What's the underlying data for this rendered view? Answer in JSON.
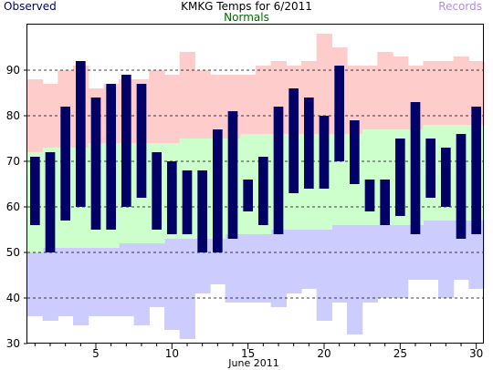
{
  "chart_data": {
    "type": "bar",
    "title": "KMKG Temps for 6/2011",
    "xlabel": "June 2011",
    "ylabel": "",
    "ylim": [
      30,
      100
    ],
    "xlim": [
      0.5,
      30.5
    ],
    "yticks": [
      30,
      40,
      50,
      60,
      70,
      80,
      90
    ],
    "xticks": [
      5,
      10,
      15,
      20,
      25,
      30
    ],
    "grid": "horizontal dashed",
    "legend": {
      "observed": "Observed",
      "normals": "Normals",
      "records": "Records"
    },
    "colors": {
      "observed": "#000066",
      "normals": "#ccffcc",
      "records_high": "#ffcccc",
      "records_low": "#ccccff",
      "normals_text": "#006600",
      "records_text": "#b38fd9"
    },
    "days": [
      1,
      2,
      3,
      4,
      5,
      6,
      7,
      8,
      9,
      10,
      11,
      12,
      13,
      14,
      15,
      16,
      17,
      18,
      19,
      20,
      21,
      22,
      23,
      24,
      25,
      26,
      27,
      28,
      29,
      30
    ],
    "observed_high": [
      71,
      72,
      82,
      92,
      84,
      87,
      89,
      87,
      72,
      70,
      68,
      68,
      77,
      81,
      66,
      71,
      82,
      86,
      84,
      80,
      91,
      79,
      66,
      66,
      75,
      83,
      75,
      73,
      76,
      82
    ],
    "observed_low": [
      56,
      50,
      57,
      60,
      55,
      55,
      60,
      62,
      55,
      54,
      54,
      50,
      50,
      53,
      59,
      56,
      54,
      63,
      64,
      64,
      70,
      65,
      59,
      56,
      58,
      54,
      62,
      60,
      53,
      54
    ],
    "normal_high": [
      72,
      73,
      73,
      73,
      74,
      74,
      74,
      74,
      74,
      74,
      75,
      75,
      75,
      75,
      76,
      76,
      76,
      76,
      76,
      76,
      76,
      76,
      77,
      77,
      77,
      77,
      78,
      78,
      78,
      78
    ],
    "normal_low": [
      50,
      51,
      51,
      51,
      51,
      51,
      52,
      52,
      52,
      53,
      53,
      53,
      53,
      54,
      54,
      54,
      55,
      55,
      55,
      55,
      56,
      56,
      56,
      56,
      56,
      56,
      57,
      57,
      57,
      57
    ],
    "record_high": [
      88,
      87,
      90,
      91,
      86,
      87,
      88,
      88,
      90,
      89,
      94,
      90,
      89,
      89,
      89,
      91,
      92,
      91,
      92,
      98,
      95,
      91,
      91,
      94,
      93,
      91,
      92,
      92,
      93,
      92
    ],
    "record_low": [
      36,
      35,
      36,
      34,
      36,
      36,
      36,
      34,
      38,
      33,
      31,
      41,
      43,
      39,
      39,
      39,
      38,
      41,
      42,
      35,
      39,
      32,
      39,
      40,
      40,
      44,
      44,
      40,
      44,
      42
    ]
  }
}
